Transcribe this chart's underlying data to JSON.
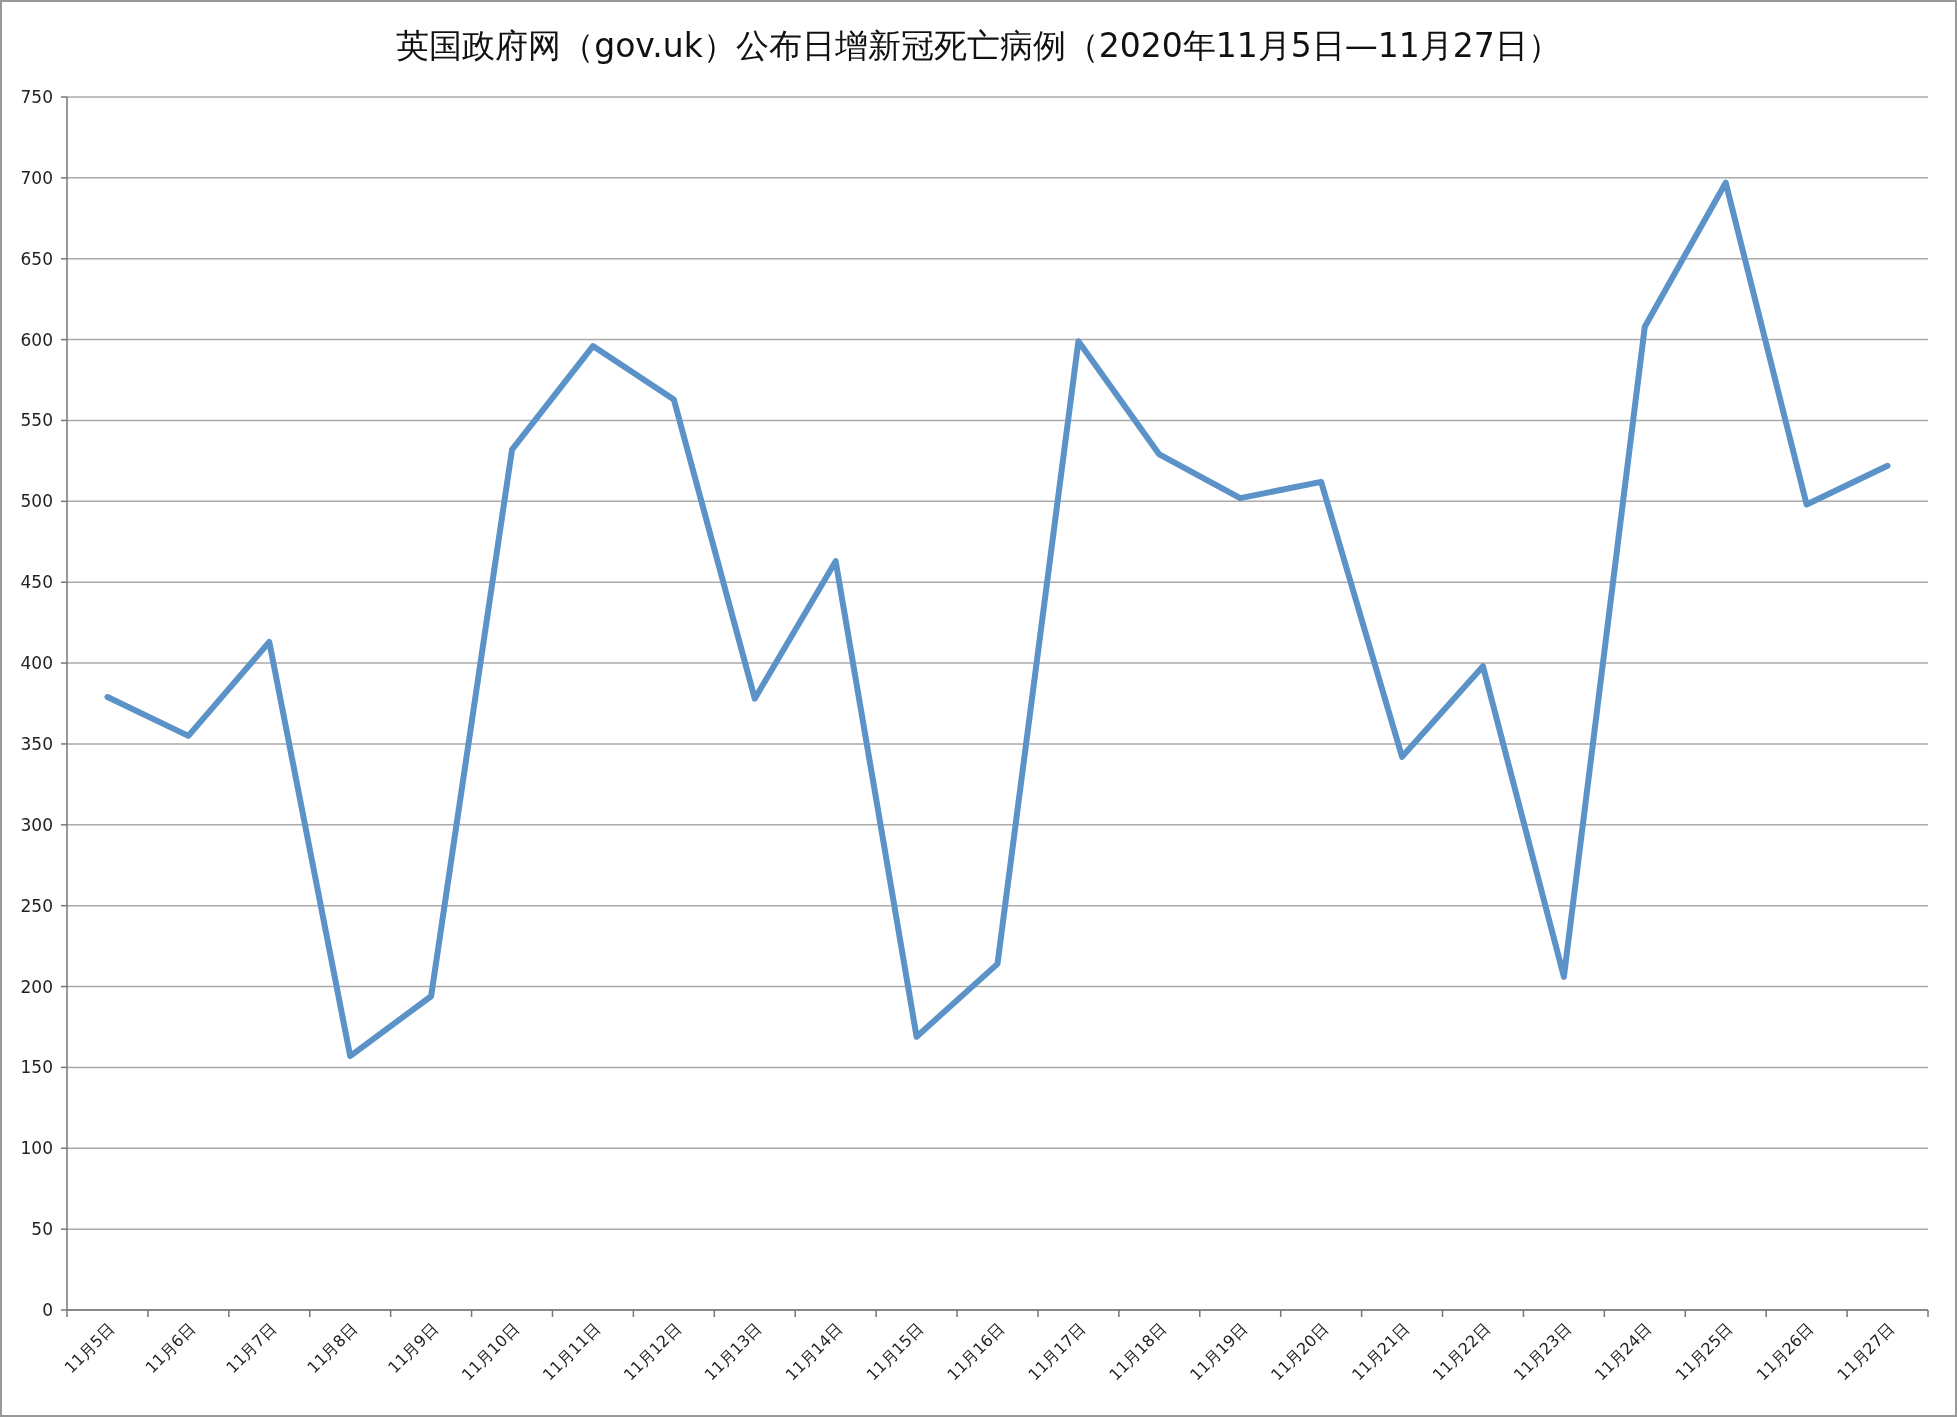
{
  "chart_data": {
    "type": "line",
    "title": "英国政府网（gov.uk）公布日增新冠死亡病例（2020年11月5日—11月27日）",
    "categories": [
      "11月5日",
      "11月6日",
      "11月7日",
      "11月8日",
      "11月9日",
      "11月10日",
      "11月11日",
      "11月12日",
      "11月13日",
      "11月14日",
      "11月15日",
      "11月16日",
      "11月17日",
      "11月18日",
      "11月19日",
      "11月20日",
      "11月21日",
      "11月22日",
      "11月23日",
      "11月24日",
      "11月25日",
      "11月26日",
      "11月27日"
    ],
    "series": [
      {
        "color": "#5b93c9",
        "values": [
          379,
          355,
          413,
          157,
          194,
          532,
          596,
          563,
          378,
          463,
          169,
          214,
          599,
          529,
          502,
          512,
          342,
          398,
          206,
          608,
          697,
          498,
          522
        ]
      }
    ],
    "ylim": [
      0,
      750
    ],
    "yticks": [
      0,
      50,
      100,
      150,
      200,
      250,
      300,
      350,
      400,
      450,
      500,
      550,
      600,
      650,
      700,
      750
    ],
    "grid": "y",
    "marker": "none",
    "line_style": "solid"
  }
}
